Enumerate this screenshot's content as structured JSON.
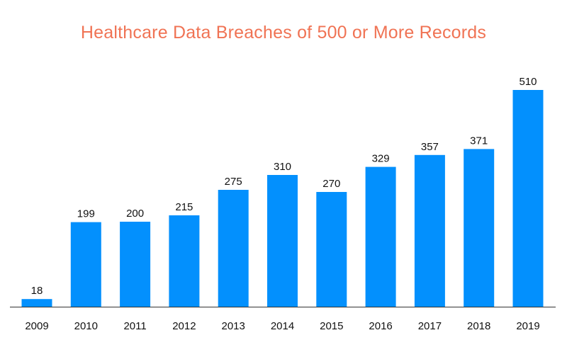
{
  "chart_data": {
    "type": "bar",
    "title": "Healthcare Data Breaches of 500 or More Records",
    "xlabel": "",
    "ylabel": "",
    "categories": [
      "2009",
      "2010",
      "2011",
      "2012",
      "2013",
      "2014",
      "2015",
      "2016",
      "2017",
      "2018",
      "2019"
    ],
    "values": [
      18,
      199,
      200,
      215,
      275,
      310,
      270,
      329,
      357,
      371,
      510
    ],
    "data_labels": [
      "18",
      "199",
      "200",
      "215",
      "275",
      "310",
      "270",
      "329",
      "357",
      "371",
      "510"
    ],
    "ylim": [
      0,
      510
    ],
    "grid": false,
    "legend": "none",
    "colors": {
      "bar": "#0390fd",
      "title": "#f07354",
      "axis": "#333333",
      "text": "#111111"
    }
  }
}
